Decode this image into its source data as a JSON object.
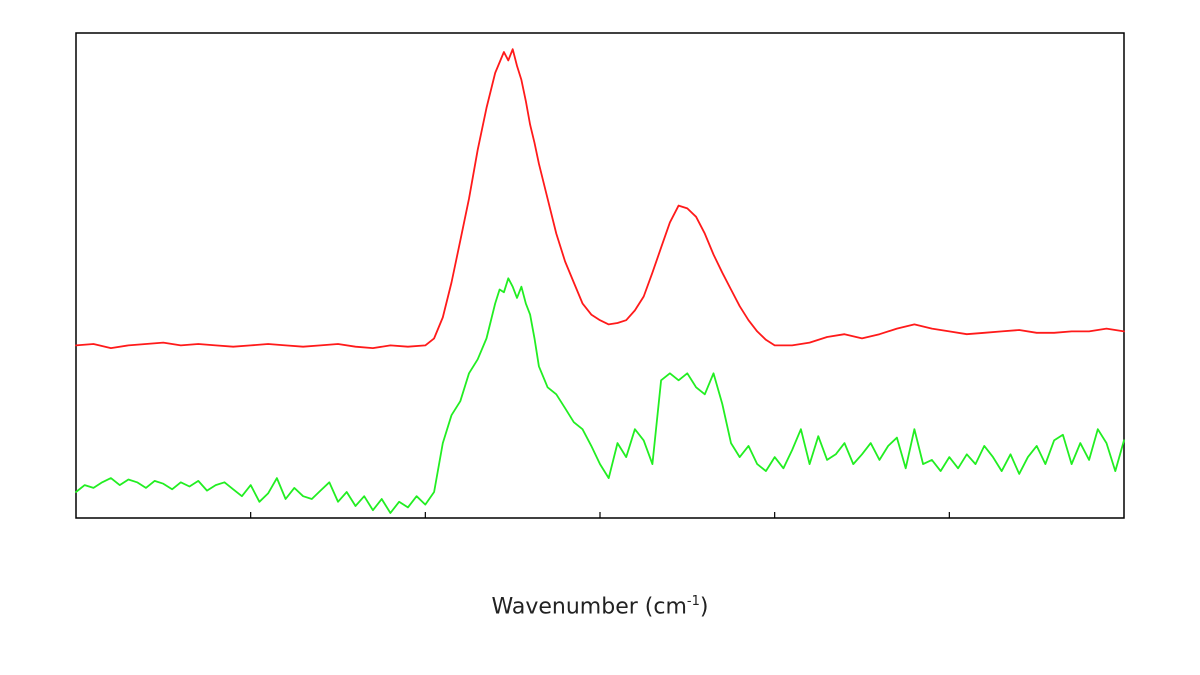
{
  "chart_data": {
    "type": "line",
    "xlabel_main": "Wavenumber (cm",
    "xlabel_sup": "-1",
    "xlabel_close": ")",
    "xlim": [
      0,
      1200
    ],
    "ylim": [
      -1.2,
      2.2
    ],
    "x_ticks": [
      200,
      400,
      600,
      800,
      1000
    ],
    "grid": false,
    "y_axis_labels": "none",
    "series": [
      {
        "color": "#ff1a1a",
        "x": [
          0,
          20,
          40,
          60,
          80,
          100,
          120,
          140,
          160,
          180,
          200,
          220,
          240,
          260,
          280,
          300,
          320,
          340,
          360,
          380,
          400,
          410,
          420,
          430,
          440,
          450,
          460,
          470,
          480,
          490,
          495,
          500,
          505,
          510,
          515,
          520,
          525,
          530,
          540,
          550,
          560,
          570,
          580,
          590,
          600,
          610,
          620,
          630,
          640,
          650,
          660,
          670,
          680,
          690,
          700,
          710,
          720,
          730,
          740,
          750,
          760,
          770,
          780,
          790,
          800,
          820,
          840,
          860,
          880,
          900,
          920,
          940,
          960,
          980,
          1000,
          1020,
          1040,
          1060,
          1080,
          1100,
          1120,
          1140,
          1160,
          1180,
          1200
        ],
        "y": [
          0.0,
          0.01,
          -0.02,
          0.0,
          0.01,
          0.02,
          0.0,
          0.01,
          0.0,
          -0.01,
          0.0,
          0.01,
          0.0,
          -0.01,
          0.0,
          0.01,
          -0.01,
          -0.02,
          0.0,
          -0.01,
          0.0,
          0.05,
          0.2,
          0.45,
          0.75,
          1.05,
          1.4,
          1.7,
          1.95,
          2.1,
          2.04,
          2.12,
          2.0,
          1.9,
          1.75,
          1.58,
          1.45,
          1.3,
          1.05,
          0.8,
          0.6,
          0.45,
          0.3,
          0.22,
          0.18,
          0.15,
          0.16,
          0.18,
          0.25,
          0.35,
          0.52,
          0.7,
          0.88,
          1.0,
          0.98,
          0.92,
          0.8,
          0.65,
          0.52,
          0.4,
          0.28,
          0.18,
          0.1,
          0.04,
          0.0,
          0.0,
          0.02,
          0.06,
          0.08,
          0.05,
          0.08,
          0.12,
          0.15,
          0.12,
          0.1,
          0.08,
          0.09,
          0.1,
          0.11,
          0.09,
          0.09,
          0.1,
          0.1,
          0.12,
          0.1
        ]
      },
      {
        "color": "#22ee22",
        "x": [
          0,
          10,
          20,
          30,
          40,
          50,
          60,
          70,
          80,
          90,
          100,
          110,
          120,
          130,
          140,
          150,
          160,
          170,
          180,
          190,
          200,
          210,
          220,
          230,
          240,
          250,
          260,
          270,
          280,
          290,
          300,
          310,
          320,
          330,
          340,
          350,
          360,
          370,
          380,
          390,
          400,
          410,
          420,
          430,
          440,
          450,
          460,
          470,
          480,
          485,
          490,
          495,
          500,
          505,
          510,
          515,
          520,
          525,
          530,
          540,
          550,
          560,
          570,
          580,
          590,
          600,
          610,
          620,
          630,
          640,
          650,
          660,
          670,
          680,
          690,
          700,
          710,
          720,
          730,
          740,
          750,
          760,
          770,
          780,
          790,
          800,
          810,
          820,
          830,
          840,
          850,
          860,
          870,
          880,
          890,
          900,
          910,
          920,
          930,
          940,
          950,
          960,
          970,
          980,
          990,
          1000,
          1010,
          1020,
          1030,
          1040,
          1050,
          1060,
          1070,
          1080,
          1090,
          1100,
          1110,
          1120,
          1130,
          1140,
          1150,
          1160,
          1170,
          1180,
          1190,
          1200
        ],
        "y": [
          -1.05,
          -1.0,
          -1.02,
          -0.98,
          -0.95,
          -1.0,
          -0.96,
          -0.98,
          -1.02,
          -0.97,
          -0.99,
          -1.03,
          -0.98,
          -1.01,
          -0.97,
          -1.04,
          -1.0,
          -0.98,
          -1.03,
          -1.08,
          -1.0,
          -1.12,
          -1.06,
          -0.95,
          -1.1,
          -1.02,
          -1.08,
          -1.1,
          -1.04,
          -0.98,
          -1.12,
          -1.05,
          -1.15,
          -1.08,
          -1.18,
          -1.1,
          -1.2,
          -1.12,
          -1.16,
          -1.08,
          -1.14,
          -1.05,
          -0.7,
          -0.5,
          -0.4,
          -0.2,
          -0.1,
          0.05,
          0.3,
          0.4,
          0.38,
          0.48,
          0.42,
          0.34,
          0.42,
          0.3,
          0.22,
          0.05,
          -0.15,
          -0.3,
          -0.35,
          -0.45,
          -0.55,
          -0.6,
          -0.72,
          -0.85,
          -0.95,
          -0.7,
          -0.8,
          -0.6,
          -0.68,
          -0.85,
          -0.25,
          -0.2,
          -0.25,
          -0.2,
          -0.3,
          -0.35,
          -0.2,
          -0.42,
          -0.7,
          -0.8,
          -0.72,
          -0.85,
          -0.9,
          -0.8,
          -0.88,
          -0.75,
          -0.6,
          -0.85,
          -0.65,
          -0.82,
          -0.78,
          -0.7,
          -0.85,
          -0.78,
          -0.7,
          -0.82,
          -0.72,
          -0.66,
          -0.88,
          -0.6,
          -0.85,
          -0.82,
          -0.9,
          -0.8,
          -0.88,
          -0.78,
          -0.85,
          -0.72,
          -0.8,
          -0.9,
          -0.78,
          -0.92,
          -0.8,
          -0.72,
          -0.85,
          -0.68,
          -0.64,
          -0.85,
          -0.7,
          -0.82,
          -0.6,
          -0.7,
          -0.9,
          -0.68
        ]
      }
    ]
  }
}
